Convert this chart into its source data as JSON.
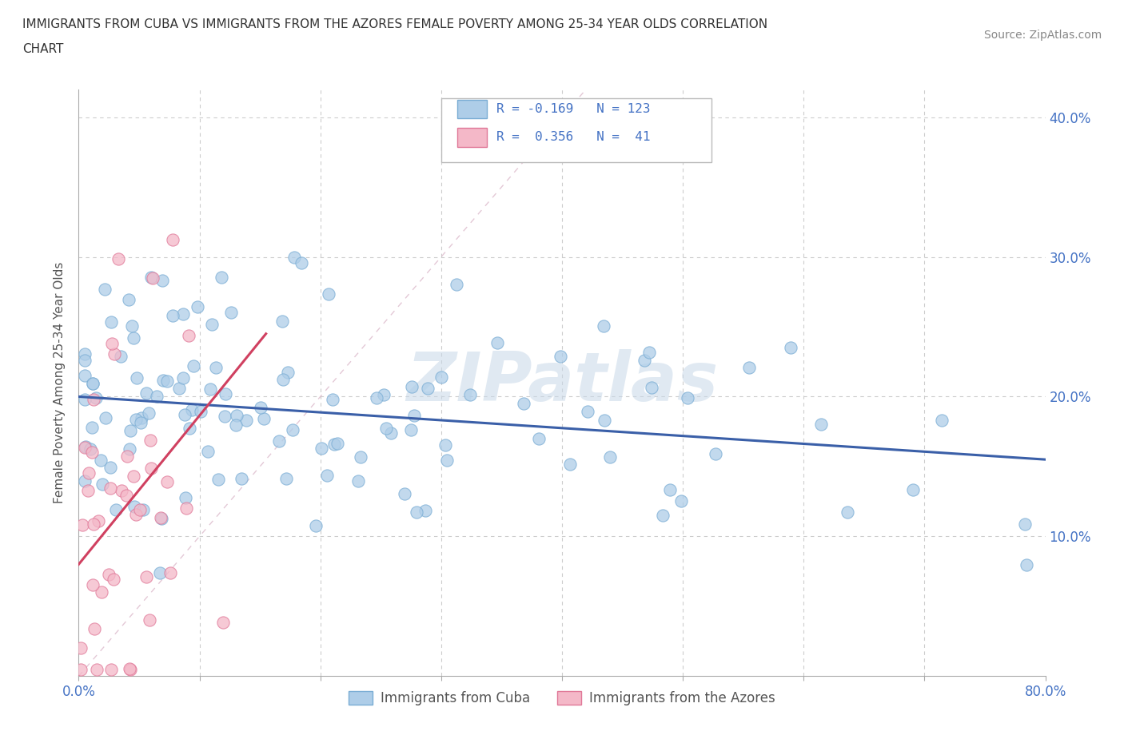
{
  "title_line1": "IMMIGRANTS FROM CUBA VS IMMIGRANTS FROM THE AZORES FEMALE POVERTY AMONG 25-34 YEAR OLDS CORRELATION",
  "title_line2": "CHART",
  "source": "Source: ZipAtlas.com",
  "ylabel": "Female Poverty Among 25-34 Year Olds",
  "xlim": [
    0.0,
    0.8
  ],
  "ylim": [
    0.0,
    0.42
  ],
  "cuba_color": "#aecde8",
  "cuba_edge": "#7aadd4",
  "azores_color": "#f4b8c8",
  "azores_edge": "#e07898",
  "trendline_cuba_color": "#3a5fa8",
  "trendline_azores_color": "#d04060",
  "diag_line_color": "#ddbbcc",
  "R_cuba": -0.169,
  "N_cuba": 123,
  "R_azores": 0.356,
  "N_azores": 41,
  "watermark": "ZIPatlas",
  "legend_label_cuba": "Immigrants from Cuba",
  "legend_label_azores": "Immigrants from the Azores",
  "cuba_trend_x0": 0.0,
  "cuba_trend_y0": 0.2,
  "cuba_trend_x1": 0.8,
  "cuba_trend_y1": 0.155,
  "azores_trend_x0": 0.0,
  "azores_trend_y0": 0.08,
  "azores_trend_x1": 0.155,
  "azores_trend_y1": 0.245
}
